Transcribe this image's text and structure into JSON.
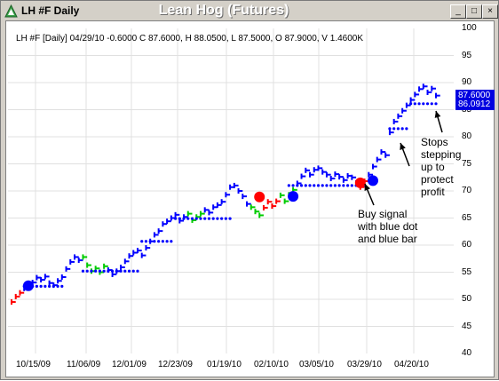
{
  "window": {
    "app_title": "LH #F Daily",
    "chart_title": "Lean Hog (Futures)",
    "buttons": {
      "minimize": "_",
      "maximize": "□",
      "close": "×"
    }
  },
  "legend": "LH #F [Daily] 04/29/10  -0.6000 C 87.6000, H 88.0500, L 87.5000, O 87.9000, V 1.4600K",
  "price_badges": {
    "last": "87.6000",
    "stop": "86.0912"
  },
  "annotations": {
    "buy_signal": [
      "Buy signal",
      "with blue dot",
      "and blue bar"
    ],
    "stops": [
      "Stops",
      "stepping",
      "up to",
      "protect",
      "profit"
    ]
  },
  "colors": {
    "up": "#0000ff",
    "neutral": "#00cc00",
    "down": "#ff0000",
    "stop_dot": "#0000ff"
  },
  "chart_data": {
    "type": "line",
    "title": "Lean Hog (Futures)",
    "xlabel": "",
    "ylabel": "",
    "ylim": [
      40,
      100
    ],
    "yticks": [
      "40",
      "45",
      "50",
      "55",
      "60",
      "65",
      "70",
      "75",
      "80",
      "85",
      "90",
      "95",
      "100"
    ],
    "xticks": [
      "10/15/09",
      "11/06/09",
      "12/01/09",
      "12/23/09",
      "01/19/10",
      "02/10/10",
      "03/05/10",
      "03/29/10",
      "04/20/10"
    ],
    "grid": true,
    "series": [
      {
        "values": [
          49.5,
          50.5,
          51.2,
          52.0,
          52.5,
          53.1,
          54.0,
          53.6,
          54.2,
          53.0,
          52.6,
          53.4,
          54.1,
          55.6,
          56.9,
          57.8,
          57.2,
          57.8,
          56.3,
          55.2,
          55.7,
          55.0,
          56.1,
          55.4,
          54.6,
          55.2,
          55.9,
          57.0,
          58.0,
          58.6,
          59.0,
          58.1,
          59.5,
          60.7,
          61.9,
          62.6,
          63.9,
          64.4,
          65.0,
          65.6,
          64.5,
          65.2,
          65.8,
          64.6,
          65.2,
          65.8,
          66.5,
          66.0,
          67.0,
          67.4,
          68.0,
          69.3,
          70.7,
          71.0,
          70.0,
          69.0,
          67.6,
          67.0,
          66.2,
          65.5,
          66.9,
          68.0,
          67.2,
          68.1,
          69.2,
          68.1,
          69.3,
          70.2,
          71.4,
          72.7,
          73.8,
          73.0,
          73.9,
          74.2,
          73.5,
          73.0,
          72.3,
          73.1,
          72.6,
          72.0,
          72.8,
          72.5,
          71.5,
          70.7,
          71.8,
          73.0,
          74.5,
          75.8,
          77.2,
          76.6,
          80.8,
          82.8,
          83.8,
          84.8,
          85.8,
          86.8,
          87.8,
          88.8,
          89.3,
          88.2,
          88.9,
          87.6
        ]
      }
    ]
  }
}
